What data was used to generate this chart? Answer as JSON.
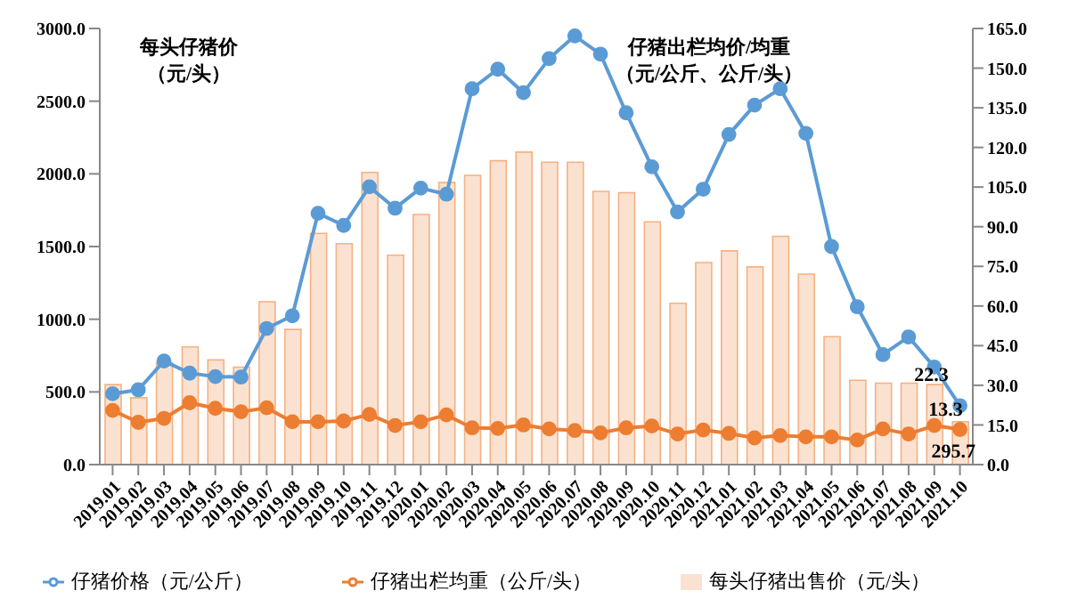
{
  "chart_data": {
    "type": "bar",
    "ylabel": "每头仔猪价（元/头）",
    "y2label": "仔猪出栏均价/均重（元/公斤、公斤/头）",
    "categories": [
      "2019.01",
      "2019.02",
      "2019.03",
      "2019.04",
      "2019.05",
      "2019.06",
      "2019.07",
      "2019.08",
      "2019.09",
      "2019.10",
      "2019.11",
      "2019.12",
      "2020.01",
      "2020.02",
      "2020.03",
      "2020.04",
      "2020.05",
      "2020.06",
      "2020.07",
      "2020.08",
      "2020.09",
      "2020.10",
      "2020.11",
      "2020.12",
      "2021.01",
      "2021.02",
      "2021.03",
      "2021.04",
      "2021.05",
      "2021.06",
      "2021.07",
      "2021.08",
      "2021.09",
      "2021.10"
    ],
    "series": [
      {
        "name": "每头仔猪出售价（元/头）",
        "color": "#fbe2d0",
        "values": [
          550,
          460,
          700,
          810,
          720,
          670,
          1120,
          930,
          1590,
          1520,
          2010,
          1440,
          1720,
          1940,
          1990,
          2090,
          2150,
          2080,
          2080,
          1880,
          1870,
          1670,
          1110,
          1390,
          1470,
          1360,
          1570,
          1310,
          880,
          580,
          560,
          560,
          550,
          295.7
        ],
        "value_labels": [
          null,
          null,
          null,
          null,
          null,
          null,
          null,
          null,
          null,
          null,
          null,
          null,
          null,
          null,
          null,
          null,
          null,
          null,
          null,
          null,
          null,
          null,
          null,
          null,
          null,
          null,
          null,
          null,
          null,
          null,
          null,
          null,
          null,
          "295.7"
        ]
      },
      {
        "name": "仔猪价格（元/公斤）",
        "type": "line",
        "axis": "y2",
        "color": "#5b9bd5",
        "values": [
          26.8,
          28.3,
          39.2,
          34.6,
          33.3,
          33.1,
          51.5,
          56.3,
          95.1,
          90.5,
          105.1,
          97.0,
          104.6,
          102.3,
          142.2,
          149.6,
          140.7,
          153.6,
          162.2,
          155.3,
          133.1,
          112.7,
          95.6,
          104.2,
          124.9,
          136.0,
          142.2,
          125.3,
          82.5,
          59.7,
          41.6,
          48.3,
          36.9,
          22.3
        ],
        "value_labels": [
          null,
          null,
          null,
          null,
          null,
          null,
          null,
          null,
          null,
          null,
          null,
          null,
          null,
          null,
          null,
          null,
          null,
          null,
          null,
          null,
          null,
          null,
          null,
          null,
          null,
          null,
          null,
          null,
          null,
          null,
          null,
          null,
          null,
          "22.3"
        ]
      },
      {
        "name": "仔猪出栏均重（公斤/头）",
        "type": "line",
        "axis": "y2",
        "color": "#ed7d31",
        "values": [
          20.5,
          16.0,
          17.5,
          23.4,
          21.3,
          20.0,
          21.5,
          16.2,
          16.2,
          16.5,
          19.0,
          14.8,
          16.2,
          18.8,
          13.9,
          13.7,
          15.0,
          13.5,
          12.9,
          12.0,
          13.9,
          14.6,
          11.6,
          13.1,
          11.8,
          10.1,
          11.0,
          10.5,
          10.5,
          9.3,
          13.5,
          11.6,
          14.8,
          13.3
        ],
        "value_labels": [
          null,
          null,
          null,
          null,
          null,
          null,
          null,
          null,
          null,
          null,
          null,
          null,
          null,
          null,
          null,
          null,
          null,
          null,
          null,
          null,
          null,
          null,
          null,
          null,
          null,
          null,
          null,
          null,
          null,
          null,
          null,
          null,
          null,
          "13.3"
        ]
      }
    ],
    "ylim": [
      0,
      3000
    ],
    "yticks": [
      {
        "value": 0,
        "label": "0.0"
      },
      {
        "value": 500,
        "label": "500.0"
      },
      {
        "value": 1000,
        "label": "1000.0"
      },
      {
        "value": 1500,
        "label": "1500.0"
      },
      {
        "value": 2000,
        "label": "2000.0"
      },
      {
        "value": 2500,
        "label": "2500.0"
      },
      {
        "value": 3000,
        "label": "3000.0"
      }
    ],
    "y2lim": [
      0,
      165
    ],
    "y2ticks": [
      {
        "value": 0,
        "label": "0.0"
      },
      {
        "value": 15,
        "label": "15.0"
      },
      {
        "value": 30,
        "label": "30.0"
      },
      {
        "value": 45,
        "label": "45.0"
      },
      {
        "value": 60,
        "label": "60.0"
      },
      {
        "value": 75,
        "label": "75.0"
      },
      {
        "value": 90,
        "label": "90.0"
      },
      {
        "value": 105,
        "label": "105.0"
      },
      {
        "value": 120,
        "label": "120.0"
      },
      {
        "value": 135,
        "label": "135.0"
      },
      {
        "value": 150,
        "label": "150.0"
      },
      {
        "value": 165,
        "label": "165.0"
      }
    ],
    "legend": "bottom",
    "marker": "circle",
    "grid": false
  }
}
